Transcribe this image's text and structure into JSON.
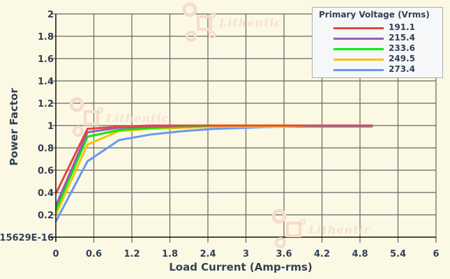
{
  "chart_data": {
    "type": "line",
    "title": "",
    "xlabel": "Load Current (Amp-rms)",
    "ylabel": "Power Factor",
    "xlim": [
      0,
      6
    ],
    "ylim": [
      0,
      2
    ],
    "grid": true,
    "legend_position": "top-right",
    "legend_title": "Primary Voltage (Vrms)",
    "x_ticks": [
      "0",
      "0.6",
      "1.2",
      "1.8",
      "2.4",
      "3",
      "3.6",
      "4.2",
      "4.8",
      "5.4",
      "6"
    ],
    "y_ticks": [
      "15629E-16",
      "0.2",
      "0.4",
      "0.6",
      "0.8",
      "1",
      "1.2",
      "1.4",
      "1.6",
      "1.8",
      "2"
    ],
    "x": [
      0,
      0.5,
      1,
      1.5,
      2,
      2.5,
      3,
      3.5,
      4,
      4.5,
      5
    ],
    "series": [
      {
        "name": "191.1",
        "color": "#e2483d",
        "values": [
          0.39,
          0.97,
          0.99,
          1.0,
          1.0,
          1.0,
          1.0,
          1.0,
          1.0,
          1.0,
          1.0
        ]
      },
      {
        "name": "215.4",
        "color": "#9b59b6",
        "values": [
          0.28,
          0.94,
          0.98,
          0.99,
          1.0,
          1.0,
          1.0,
          1.0,
          1.0,
          1.0,
          1.0
        ]
      },
      {
        "name": "233.6",
        "color": "#00ee00",
        "values": [
          0.24,
          0.9,
          0.96,
          0.98,
          0.99,
          1.0,
          1.0,
          1.0,
          1.0,
          1.0,
          1.0
        ]
      },
      {
        "name": "249.5",
        "color": "#f5c211",
        "values": [
          0.2,
          0.83,
          0.95,
          0.97,
          0.98,
          0.99,
          0.99,
          0.99,
          1.0,
          1.0,
          1.0
        ]
      },
      {
        "name": "273.4",
        "color": "#6699ee",
        "values": [
          0.14,
          0.68,
          0.87,
          0.92,
          0.95,
          0.97,
          0.98,
          0.99,
          0.99,
          0.99,
          0.99
        ]
      }
    ]
  },
  "watermark": "Lithentic"
}
